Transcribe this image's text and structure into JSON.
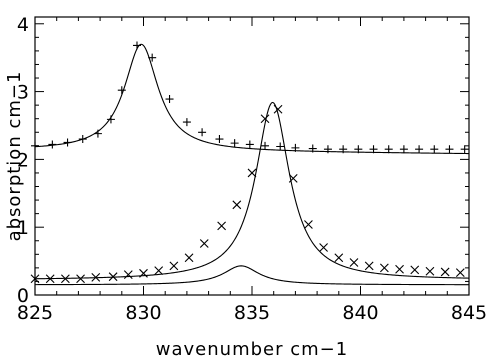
{
  "chart_data": {
    "type": "scatter",
    "title": "",
    "xlabel": "wavenumber cm−1",
    "ylabel": "absorption cm−1",
    "xlim": [
      825,
      845
    ],
    "ylim": [
      0,
      4.1
    ],
    "grid": false,
    "legend": "none",
    "xticks": [
      825,
      830,
      835,
      840,
      845
    ],
    "xtick_labels": [
      "825",
      "830",
      "835",
      "840",
      "845"
    ],
    "yticks": [
      0,
      1,
      2,
      3,
      4
    ],
    "ytick_labels": [
      "0",
      "1",
      "2",
      "3",
      "4"
    ],
    "series": [
      {
        "marker": "plus",
        "points": [
          [
            825.0,
            2.2
          ],
          [
            825.8,
            2.22
          ],
          [
            826.5,
            2.25
          ],
          [
            827.2,
            2.3
          ],
          [
            827.9,
            2.38
          ],
          [
            828.5,
            2.59
          ],
          [
            829.0,
            3.02
          ],
          [
            829.7,
            3.68
          ],
          [
            830.4,
            3.5
          ],
          [
            831.2,
            2.89
          ],
          [
            832.0,
            2.55
          ],
          [
            832.7,
            2.4
          ],
          [
            833.5,
            2.3
          ],
          [
            834.2,
            2.24
          ],
          [
            834.9,
            2.22
          ],
          [
            835.6,
            2.2
          ],
          [
            836.3,
            2.19
          ],
          [
            837.0,
            2.17
          ],
          [
            837.8,
            2.16
          ],
          [
            838.5,
            2.15
          ],
          [
            839.2,
            2.15
          ],
          [
            839.9,
            2.15
          ],
          [
            840.6,
            2.15
          ],
          [
            841.3,
            2.15
          ],
          [
            842.0,
            2.15
          ],
          [
            842.7,
            2.15
          ],
          [
            843.4,
            2.15
          ],
          [
            844.1,
            2.15
          ],
          [
            844.8,
            2.15
          ]
        ]
      },
      {
        "marker": "cross",
        "points": [
          [
            825.0,
            0.24
          ],
          [
            825.7,
            0.24
          ],
          [
            826.4,
            0.24
          ],
          [
            827.1,
            0.24
          ],
          [
            827.8,
            0.26
          ],
          [
            828.6,
            0.27
          ],
          [
            829.3,
            0.3
          ],
          [
            830.0,
            0.32
          ],
          [
            830.7,
            0.36
          ],
          [
            831.4,
            0.43
          ],
          [
            832.1,
            0.55
          ],
          [
            832.8,
            0.76
          ],
          [
            833.6,
            1.02
          ],
          [
            834.3,
            1.33
          ],
          [
            835.0,
            1.8
          ],
          [
            835.6,
            2.6
          ],
          [
            836.2,
            2.74
          ],
          [
            836.9,
            1.72
          ],
          [
            837.6,
            1.04
          ],
          [
            838.3,
            0.7
          ],
          [
            839.0,
            0.55
          ],
          [
            839.7,
            0.48
          ],
          [
            840.4,
            0.43
          ],
          [
            841.1,
            0.4
          ],
          [
            841.8,
            0.38
          ],
          [
            842.5,
            0.37
          ],
          [
            843.2,
            0.35
          ],
          [
            843.9,
            0.34
          ],
          [
            844.6,
            0.33
          ]
        ]
      }
    ],
    "curves": [
      {
        "name": "",
        "baseline": 2.13,
        "baseline_slope": -0.0025,
        "center": 829.9,
        "amplitude": 1.58,
        "hwhm": 0.95
      },
      {
        "name": "",
        "baseline": 0.22,
        "baseline_slope": 0.0,
        "center": 835.95,
        "amplitude": 2.62,
        "hwhm": 0.95
      },
      {
        "name": "",
        "baseline": 0.15,
        "baseline_slope": 0.0,
        "center": 834.5,
        "amplitude": 0.28,
        "hwhm": 1.0
      }
    ]
  }
}
